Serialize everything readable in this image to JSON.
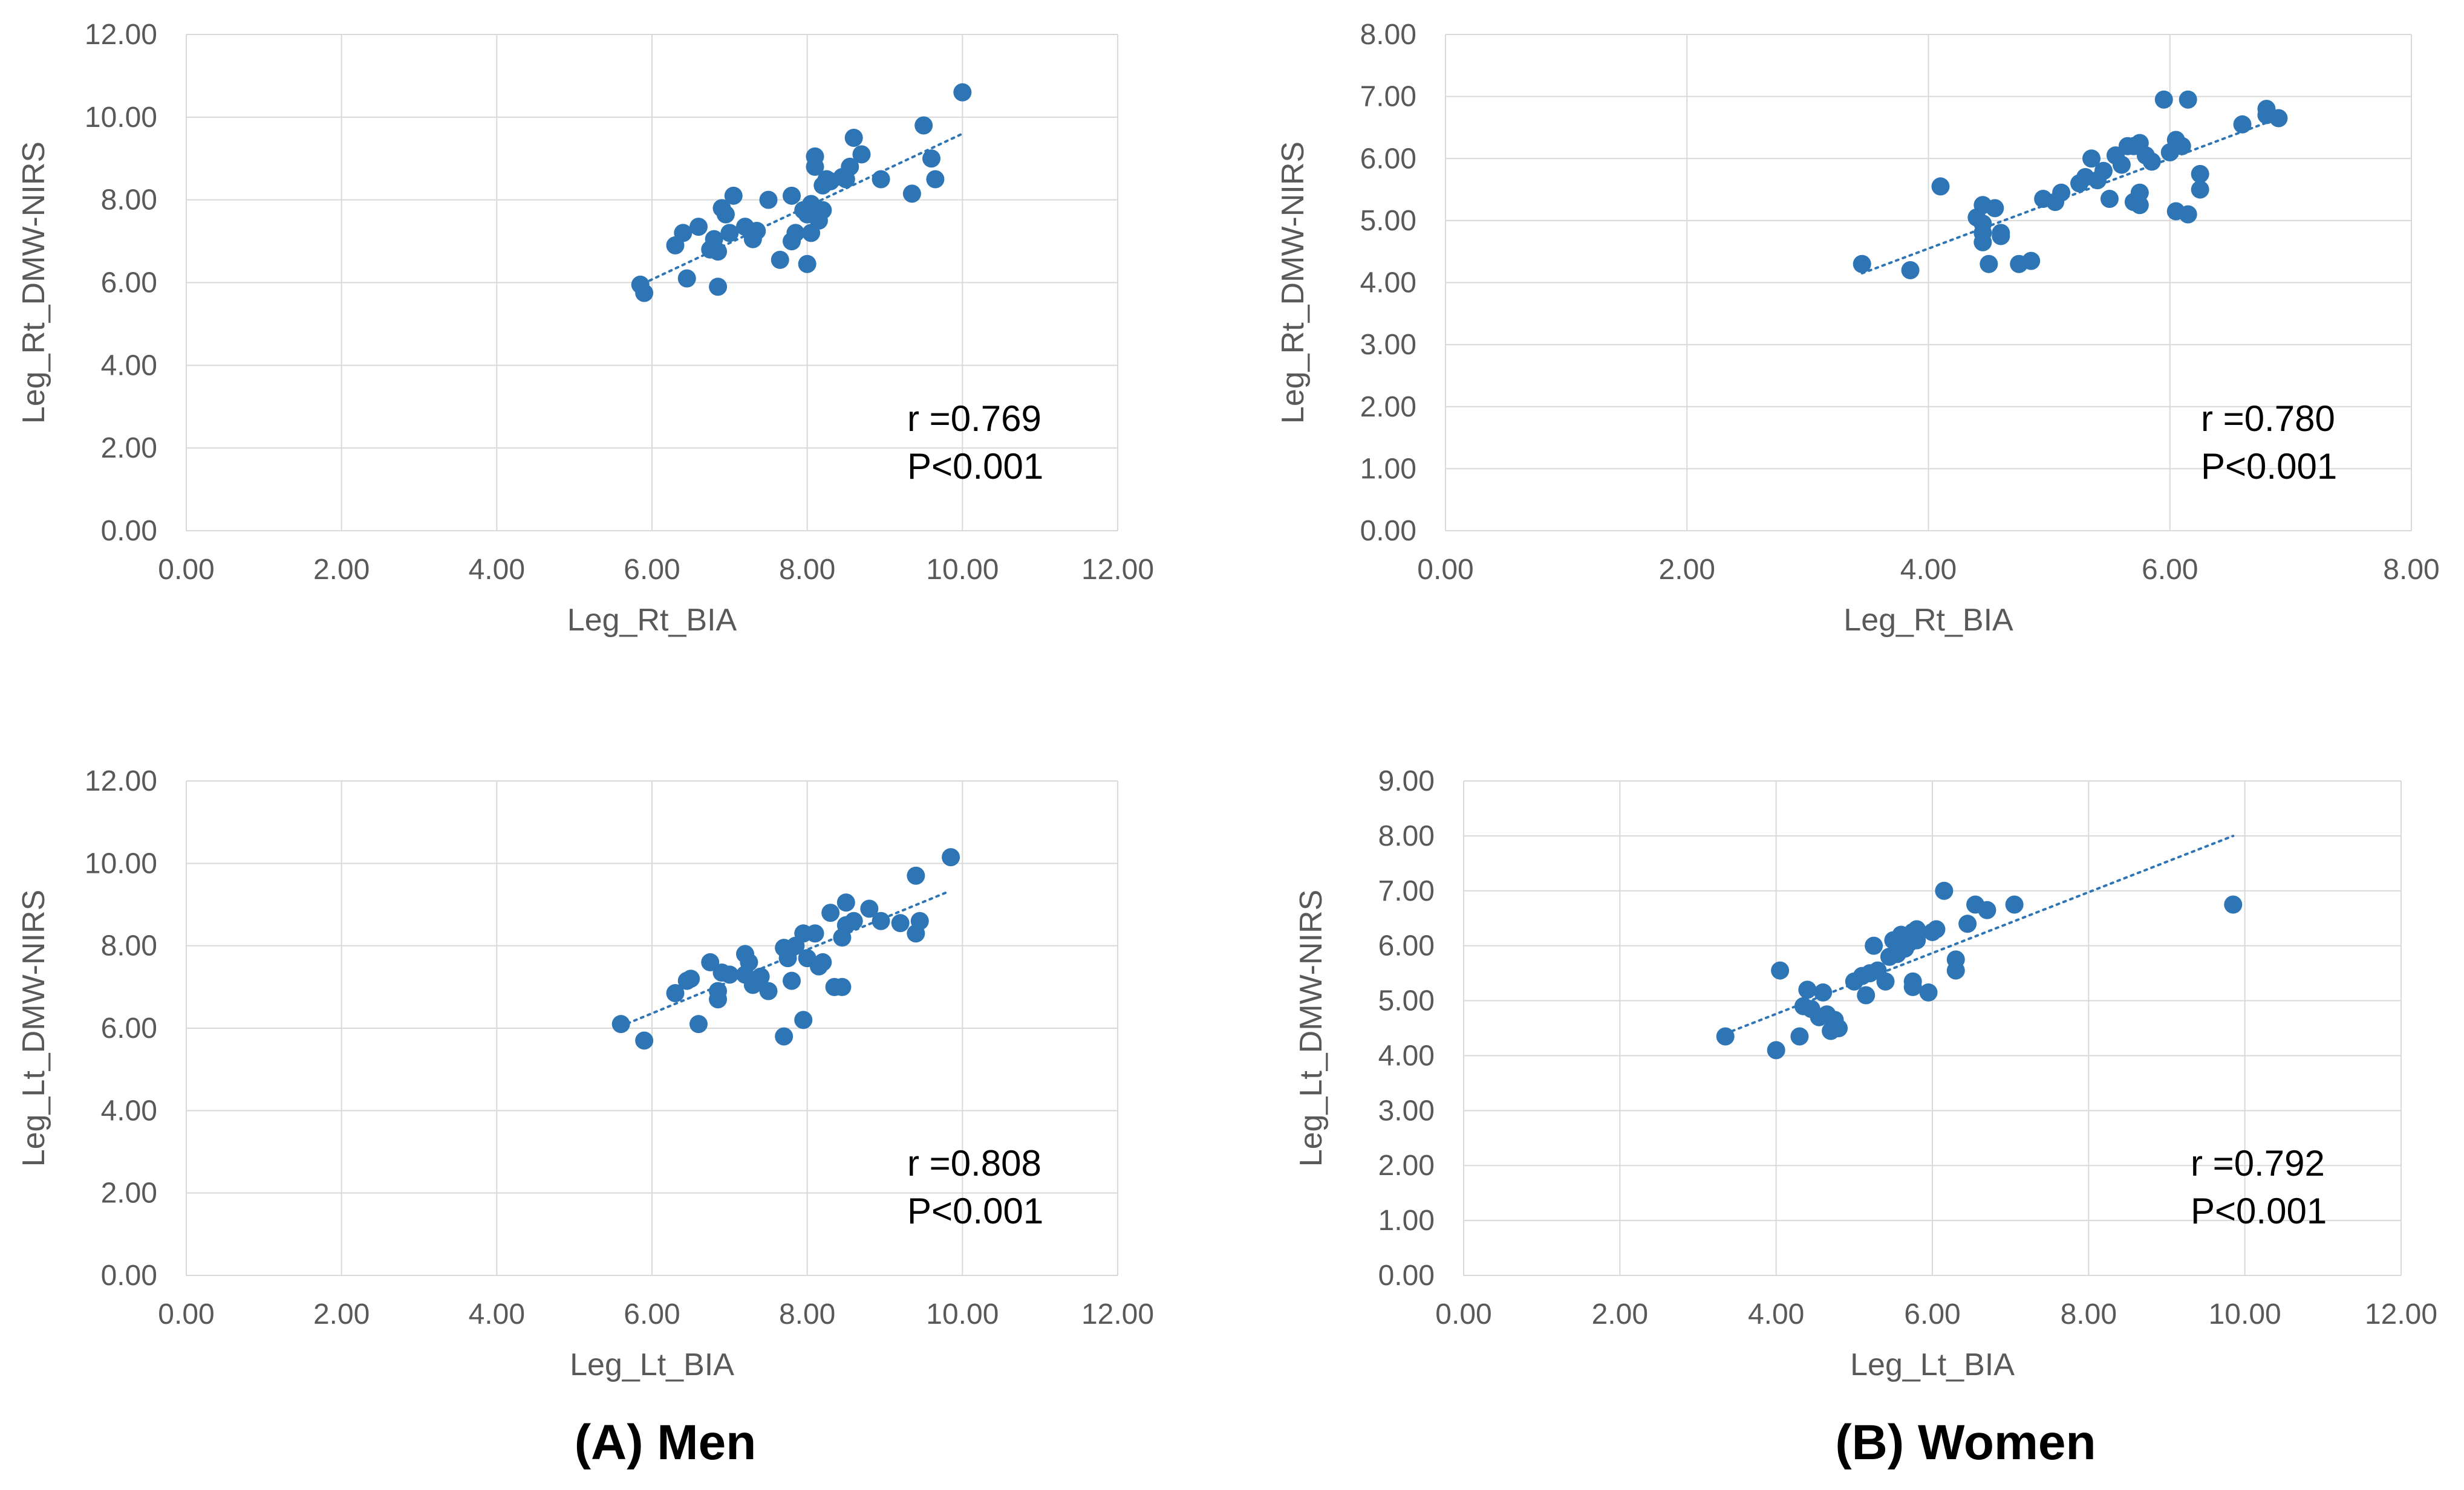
{
  "colors": {
    "marker": "#2E75B6",
    "trend": "#2E75B6",
    "grid": "#D9D9D9",
    "text": "#595959"
  },
  "captions": {
    "men": "(A) Men",
    "women": "(B) Women"
  },
  "chart_data": [
    {
      "type": "scatter",
      "panel": "men-right-leg",
      "xlabel": "Leg_Rt_BIA",
      "ylabel": "Leg_Rt_DMW-NIRS",
      "xlim": [
        0,
        12
      ],
      "ylim": [
        0,
        12
      ],
      "xstep": 2,
      "ystep": 2,
      "xticks": [
        "0.00",
        "2.00",
        "4.00",
        "6.00",
        "8.00",
        "10.00",
        "12.00"
      ],
      "yticks": [
        "0.00",
        "2.00",
        "4.00",
        "6.00",
        "8.00",
        "10.00",
        "12.00"
      ],
      "annotation": {
        "r": "r =0.769",
        "p": "P<0.001"
      },
      "trendline": {
        "x": [
          5.8,
          10.0
        ],
        "y": [
          5.9,
          9.6
        ]
      },
      "points": [
        [
          5.85,
          5.95
        ],
        [
          5.9,
          5.75
        ],
        [
          6.3,
          6.9
        ],
        [
          6.4,
          7.2
        ],
        [
          6.45,
          6.1
        ],
        [
          6.6,
          7.35
        ],
        [
          6.75,
          6.8
        ],
        [
          6.8,
          7.05
        ],
        [
          6.85,
          6.75
        ],
        [
          6.85,
          5.9
        ],
        [
          6.9,
          7.8
        ],
        [
          6.95,
          7.65
        ],
        [
          7.0,
          7.2
        ],
        [
          7.05,
          8.1
        ],
        [
          7.2,
          7.35
        ],
        [
          7.3,
          7.05
        ],
        [
          7.35,
          7.25
        ],
        [
          7.5,
          8.0
        ],
        [
          7.65,
          6.55
        ],
        [
          7.8,
          7.0
        ],
        [
          7.8,
          8.1
        ],
        [
          7.85,
          7.2
        ],
        [
          7.95,
          7.75
        ],
        [
          8.0,
          6.45
        ],
        [
          8.0,
          7.65
        ],
        [
          8.05,
          7.9
        ],
        [
          8.05,
          7.2
        ],
        [
          8.1,
          8.8
        ],
        [
          8.1,
          9.05
        ],
        [
          8.15,
          7.5
        ],
        [
          8.2,
          7.75
        ],
        [
          8.2,
          8.35
        ],
        [
          8.25,
          8.5
        ],
        [
          8.3,
          8.45
        ],
        [
          8.45,
          8.55
        ],
        [
          8.5,
          8.5
        ],
        [
          8.55,
          8.8
        ],
        [
          8.6,
          9.5
        ],
        [
          8.7,
          9.1
        ],
        [
          8.95,
          8.5
        ],
        [
          9.35,
          8.15
        ],
        [
          9.5,
          9.8
        ],
        [
          9.6,
          9.0
        ],
        [
          9.65,
          8.5
        ],
        [
          10.0,
          10.6
        ]
      ]
    },
    {
      "type": "scatter",
      "panel": "women-right-leg",
      "xlabel": "Leg_Rt_BIA",
      "ylabel": "Leg_Rt_DMW-NIRS",
      "xlim": [
        0,
        8
      ],
      "ylim": [
        0,
        8
      ],
      "xstep": 2,
      "ystep": 1,
      "xticks": [
        "0.00",
        "2.00",
        "4.00",
        "6.00",
        "8.00"
      ],
      "yticks": [
        "0.00",
        "1.00",
        "2.00",
        "3.00",
        "4.00",
        "5.00",
        "6.00",
        "7.00",
        "8.00"
      ],
      "annotation": {
        "r": "r =0.780",
        "p": "P<0.001"
      },
      "trendline": {
        "x": [
          3.45,
          6.9
        ],
        "y": [
          4.15,
          6.65
        ]
      },
      "points": [
        [
          3.45,
          4.3
        ],
        [
          3.85,
          4.2
        ],
        [
          4.1,
          5.55
        ],
        [
          4.4,
          5.05
        ],
        [
          4.45,
          5.25
        ],
        [
          4.45,
          4.95
        ],
        [
          4.45,
          4.8
        ],
        [
          4.45,
          4.65
        ],
        [
          4.5,
          4.3
        ],
        [
          4.55,
          5.2
        ],
        [
          4.6,
          4.75
        ],
        [
          4.6,
          4.8
        ],
        [
          4.75,
          4.3
        ],
        [
          4.85,
          4.35
        ],
        [
          4.95,
          5.35
        ],
        [
          5.05,
          5.3
        ],
        [
          5.1,
          5.45
        ],
        [
          5.25,
          5.6
        ],
        [
          5.3,
          5.7
        ],
        [
          5.35,
          6.0
        ],
        [
          5.4,
          5.65
        ],
        [
          5.45,
          5.8
        ],
        [
          5.5,
          5.35
        ],
        [
          5.55,
          6.05
        ],
        [
          5.6,
          5.9
        ],
        [
          5.65,
          6.2
        ],
        [
          5.7,
          6.2
        ],
        [
          5.7,
          5.3
        ],
        [
          5.75,
          5.45
        ],
        [
          5.75,
          5.25
        ],
        [
          5.75,
          6.25
        ],
        [
          5.8,
          6.05
        ],
        [
          5.85,
          5.95
        ],
        [
          5.95,
          6.95
        ],
        [
          6.0,
          6.1
        ],
        [
          6.05,
          5.15
        ],
        [
          6.05,
          6.3
        ],
        [
          6.1,
          6.2
        ],
        [
          6.15,
          5.1
        ],
        [
          6.15,
          6.95
        ],
        [
          6.25,
          5.5
        ],
        [
          6.25,
          5.75
        ],
        [
          6.6,
          6.55
        ],
        [
          6.8,
          6.7
        ],
        [
          6.8,
          6.8
        ],
        [
          6.9,
          6.65
        ]
      ]
    },
    {
      "type": "scatter",
      "panel": "men-left-leg",
      "xlabel": "Leg_Lt_BIA",
      "ylabel": "Leg_Lt_DMW-NIRS",
      "xlim": [
        0,
        12
      ],
      "ylim": [
        0,
        12
      ],
      "xstep": 2,
      "ystep": 2,
      "xticks": [
        "0.00",
        "2.00",
        "4.00",
        "6.00",
        "8.00",
        "10.00",
        "12.00"
      ],
      "yticks": [
        "0.00",
        "2.00",
        "4.00",
        "6.00",
        "8.00",
        "10.00",
        "12.00"
      ],
      "annotation": {
        "r": "r =0.808",
        "p": "P<0.001"
      },
      "trendline": {
        "x": [
          5.6,
          9.8
        ],
        "y": [
          6.05,
          9.3
        ]
      },
      "points": [
        [
          5.6,
          6.1
        ],
        [
          5.9,
          5.7
        ],
        [
          6.3,
          6.85
        ],
        [
          6.45,
          7.15
        ],
        [
          6.5,
          7.2
        ],
        [
          6.6,
          6.1
        ],
        [
          6.75,
          7.6
        ],
        [
          6.85,
          6.9
        ],
        [
          6.85,
          6.7
        ],
        [
          6.9,
          7.35
        ],
        [
          7.0,
          7.3
        ],
        [
          7.2,
          7.8
        ],
        [
          7.2,
          7.3
        ],
        [
          7.25,
          7.6
        ],
        [
          7.3,
          7.05
        ],
        [
          7.4,
          7.25
        ],
        [
          7.5,
          6.9
        ],
        [
          7.7,
          5.8
        ],
        [
          7.7,
          7.95
        ],
        [
          7.75,
          7.7
        ],
        [
          7.8,
          7.15
        ],
        [
          7.85,
          8.0
        ],
        [
          7.95,
          8.3
        ],
        [
          7.95,
          6.2
        ],
        [
          8.0,
          7.7
        ],
        [
          8.1,
          8.3
        ],
        [
          8.15,
          7.5
        ],
        [
          8.2,
          7.6
        ],
        [
          8.3,
          8.8
        ],
        [
          8.35,
          7.0
        ],
        [
          8.45,
          7.0
        ],
        [
          8.45,
          8.2
        ],
        [
          8.5,
          8.5
        ],
        [
          8.5,
          9.05
        ],
        [
          8.6,
          8.6
        ],
        [
          8.8,
          8.9
        ],
        [
          8.95,
          8.6
        ],
        [
          9.2,
          8.55
        ],
        [
          9.4,
          9.7
        ],
        [
          9.4,
          8.3
        ],
        [
          9.45,
          8.6
        ],
        [
          9.85,
          10.15
        ]
      ]
    },
    {
      "type": "scatter",
      "panel": "women-left-leg",
      "xlabel": "Leg_Lt_BIA",
      "ylabel": "Leg_Lt_DMW-NIRS",
      "xlim": [
        0,
        12
      ],
      "ylim": [
        0,
        9
      ],
      "xstep": 2,
      "ystep": 1,
      "xticks": [
        "0.00",
        "2.00",
        "4.00",
        "6.00",
        "8.00",
        "10.00",
        "12.00"
      ],
      "yticks": [
        "0.00",
        "1.00",
        "2.00",
        "3.00",
        "4.00",
        "5.00",
        "6.00",
        "7.00",
        "8.00",
        "9.00"
      ],
      "annotation": {
        "r": "r =0.792",
        "p": "P<0.001"
      },
      "trendline": {
        "x": [
          3.35,
          9.85
        ],
        "y": [
          4.4,
          8.0
        ]
      },
      "points": [
        [
          3.35,
          4.35
        ],
        [
          4.0,
          4.1
        ],
        [
          4.05,
          5.55
        ],
        [
          4.3,
          4.35
        ],
        [
          4.35,
          4.9
        ],
        [
          4.4,
          5.2
        ],
        [
          4.45,
          4.85
        ],
        [
          4.55,
          4.7
        ],
        [
          4.6,
          5.15
        ],
        [
          4.65,
          4.75
        ],
        [
          4.7,
          4.45
        ],
        [
          4.75,
          4.65
        ],
        [
          4.8,
          4.5
        ],
        [
          5.0,
          5.35
        ],
        [
          5.1,
          5.45
        ],
        [
          5.15,
          5.1
        ],
        [
          5.2,
          5.5
        ],
        [
          5.25,
          6.0
        ],
        [
          5.3,
          5.55
        ],
        [
          5.4,
          5.35
        ],
        [
          5.45,
          5.8
        ],
        [
          5.5,
          6.1
        ],
        [
          5.55,
          5.85
        ],
        [
          5.6,
          6.2
        ],
        [
          5.65,
          5.95
        ],
        [
          5.7,
          6.05
        ],
        [
          5.75,
          6.25
        ],
        [
          5.75,
          5.35
        ],
        [
          5.75,
          5.25
        ],
        [
          5.8,
          6.3
        ],
        [
          5.8,
          6.1
        ],
        [
          5.95,
          5.15
        ],
        [
          6.0,
          6.25
        ],
        [
          6.05,
          6.3
        ],
        [
          6.15,
          7.0
        ],
        [
          6.3,
          5.55
        ],
        [
          6.3,
          5.75
        ],
        [
          6.45,
          6.4
        ],
        [
          6.55,
          6.75
        ],
        [
          6.7,
          6.65
        ],
        [
          7.05,
          6.75
        ],
        [
          9.85,
          6.75
        ]
      ]
    }
  ]
}
